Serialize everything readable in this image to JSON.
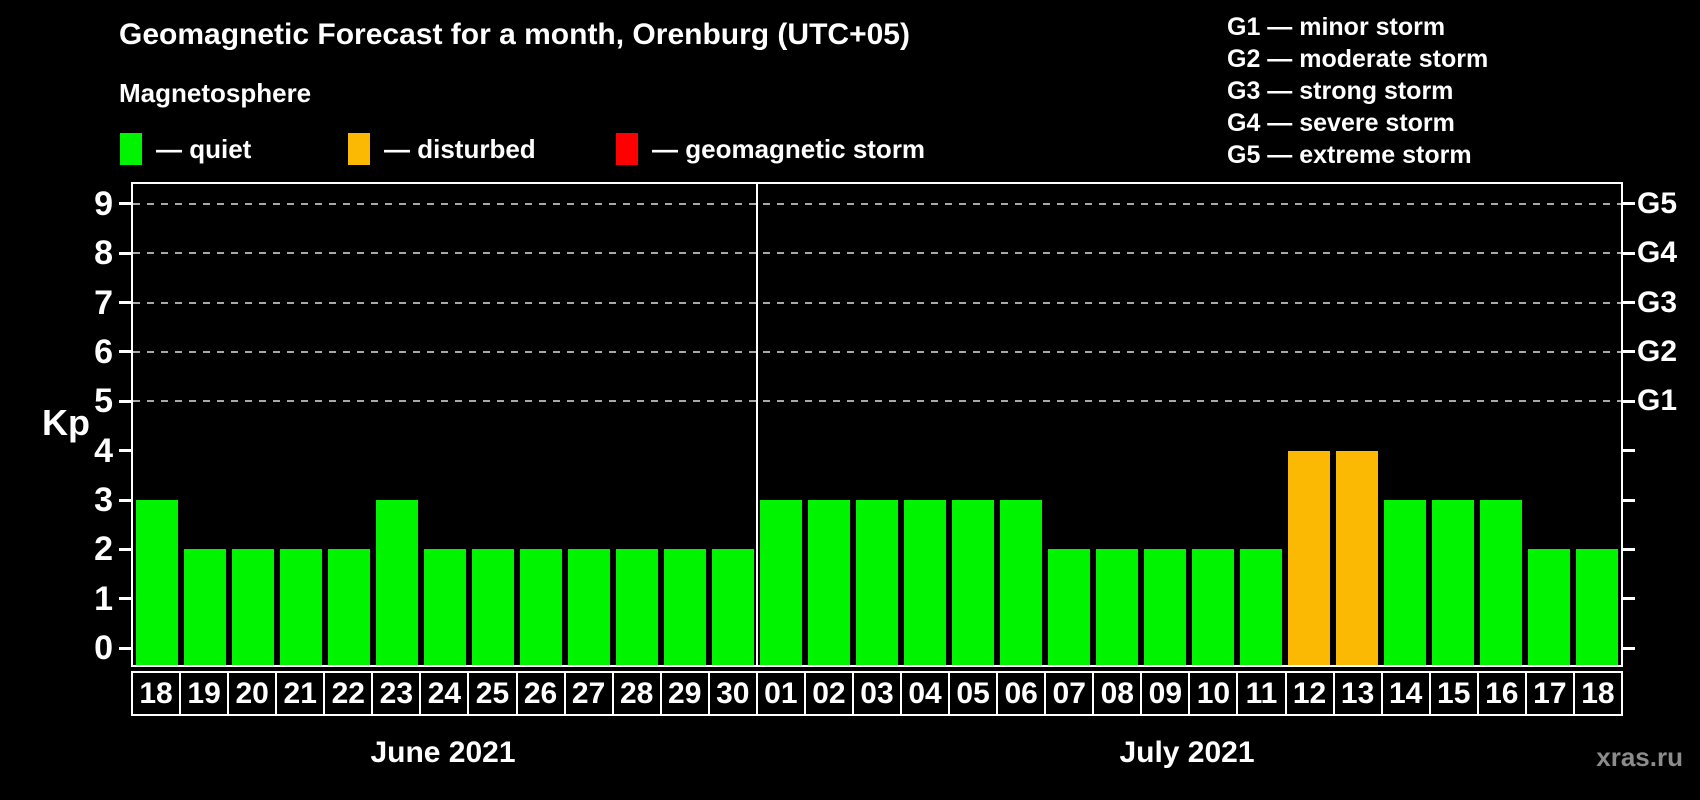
{
  "subtitle": "Magnetosphere",
  "legend": {
    "items": [
      {
        "name": "quiet",
        "label": "— quiet",
        "color": "#00f400"
      },
      {
        "name": "disturbed",
        "label": "— disturbed",
        "color": "#fcb904"
      },
      {
        "name": "storm",
        "label": "— geomagnetic storm",
        "color": "#ff0000"
      }
    ]
  },
  "g_scale_legend": {
    "lines": [
      "G1 — minor storm",
      "G2 — moderate storm",
      "G3 — strong storm",
      "G4 — severe storm",
      "G5 — extreme storm"
    ]
  },
  "watermark": "xras.ru",
  "chart_data": {
    "type": "bar",
    "title": "Geomagnetic Forecast for a month, Orenburg (UTC+05)",
    "ylabel": "Kp",
    "ylim": [
      -0.34,
      9.4
    ],
    "y_ticks": [
      0,
      1,
      2,
      3,
      4,
      5,
      6,
      7,
      8,
      9
    ],
    "gridline_values": [
      5,
      6,
      7,
      8,
      9
    ],
    "right_axis_labels": [
      {
        "value": 5,
        "label": "G1"
      },
      {
        "value": 6,
        "label": "G2"
      },
      {
        "value": 7,
        "label": "G3"
      },
      {
        "value": 8,
        "label": "G4"
      },
      {
        "value": 9,
        "label": "G5"
      }
    ],
    "colors": {
      "quiet": "#00f400",
      "disturbed": "#fcb904",
      "storm": "#ff0000"
    },
    "color_rules": {
      "quiet_below": 4,
      "storm_from": 5
    },
    "grid": "dashed horizontal lines at G-storm levels only",
    "legend_position": "top-left",
    "months": [
      {
        "label": "June 2021",
        "days": [
          "18",
          "19",
          "20",
          "21",
          "22",
          "23",
          "24",
          "25",
          "26",
          "27",
          "28",
          "29",
          "30"
        ],
        "values": [
          3,
          2,
          2,
          2,
          2,
          3,
          2,
          2,
          2,
          2,
          2,
          2,
          2
        ]
      },
      {
        "label": "July 2021",
        "days": [
          "01",
          "02",
          "03",
          "04",
          "05",
          "06",
          "07",
          "08",
          "09",
          "10",
          "11",
          "12",
          "13",
          "14",
          "15",
          "16",
          "17",
          "18"
        ],
        "values": [
          3,
          3,
          3,
          3,
          3,
          3,
          2,
          2,
          2,
          2,
          2,
          4,
          4,
          3,
          3,
          3,
          2,
          2
        ]
      }
    ]
  }
}
